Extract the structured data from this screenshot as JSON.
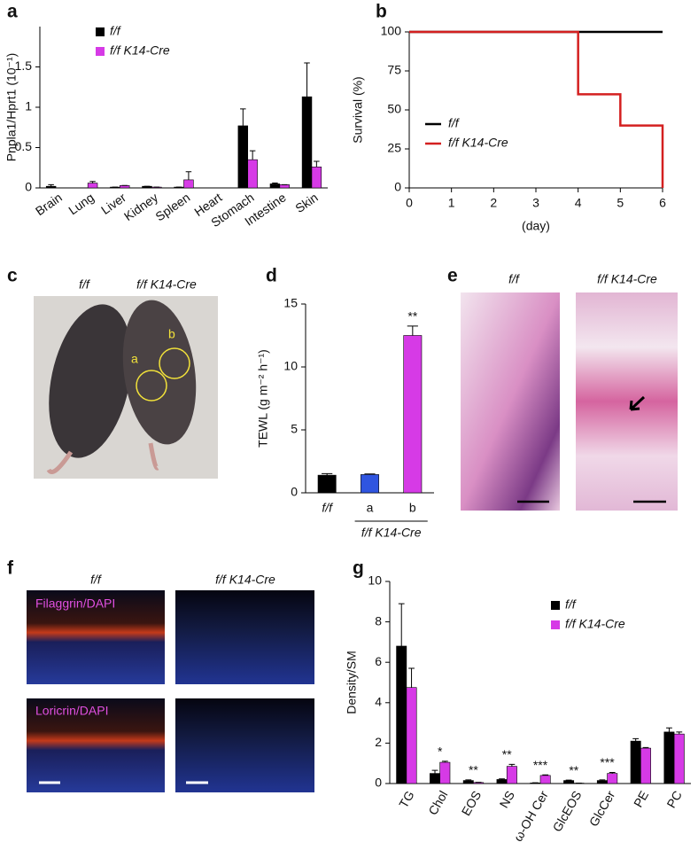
{
  "chart_data": [
    {
      "type": "bar",
      "panel": "a",
      "y_label": "Pnpla1/Hprt1 (10⁻¹)",
      "categories": [
        "Brain",
        "Lung",
        "Liver",
        "Kidney",
        "Spleen",
        "Heart",
        "Stomach",
        "Intestine",
        "Skin"
      ],
      "series": [
        {
          "name": "f/f",
          "color": "#000000",
          "values": [
            0.02,
            0.0,
            0.01,
            0.02,
            0.01,
            0.0,
            0.77,
            0.05,
            1.13
          ],
          "errors": [
            0.02,
            0.0,
            0.0,
            0.0,
            0.0,
            0.0,
            0.21,
            0.01,
            0.42
          ]
        },
        {
          "name": "f/f K14-Cre",
          "color": "#d63ae6",
          "values": [
            0.0,
            0.06,
            0.03,
            0.01,
            0.1,
            0.0,
            0.35,
            0.04,
            0.26
          ],
          "errors": [
            0.0,
            0.02,
            0.0,
            0.0,
            0.1,
            0.0,
            0.11,
            0.0,
            0.07
          ]
        }
      ],
      "ylim": [
        0,
        2
      ],
      "yticks": [
        0,
        0.5,
        1,
        1.5
      ]
    },
    {
      "type": "line",
      "panel": "b",
      "y_label": "Survival (%)",
      "x_label": "(day)",
      "series": [
        {
          "name": "f/f",
          "color": "#000000",
          "x": [
            0,
            6
          ],
          "values": [
            100,
            100
          ]
        },
        {
          "name": "f/f K14-Cre",
          "color": "#d42020",
          "x": [
            0,
            4,
            4,
            5,
            5,
            6,
            6
          ],
          "values": [
            100,
            100,
            60,
            60,
            40,
            40,
            0
          ]
        }
      ],
      "xlim": [
        0,
        6
      ],
      "xticks": [
        0,
        1,
        2,
        3,
        4,
        5,
        6
      ],
      "ylim": [
        0,
        100
      ],
      "yticks": [
        0,
        25,
        50,
        75,
        100
      ]
    },
    {
      "type": "bar",
      "panel": "d",
      "y_label": "TEWL (g m⁻² h⁻¹)",
      "categories": [
        "f/f",
        "a",
        "b"
      ],
      "values": [
        1.4,
        1.45,
        12.5
      ],
      "errors": [
        0.12,
        0.05,
        0.75
      ],
      "colors": [
        "#000000",
        "#2f55e0",
        "#d63ae6"
      ],
      "annotations": [
        null,
        null,
        "**"
      ],
      "group_label": "f/f K14-Cre",
      "ylim": [
        0,
        15
      ],
      "yticks": [
        0,
        5,
        10,
        15
      ]
    },
    {
      "type": "bar",
      "panel": "g",
      "y_label": "Density/SM",
      "categories": [
        "TG",
        "Chol",
        "EOS",
        "NS",
        "ω-OH Cer",
        "GlcEOS",
        "GlcCer",
        "PE",
        "PC"
      ],
      "series": [
        {
          "name": "f/f",
          "color": "#000000",
          "values": [
            6.8,
            0.5,
            0.15,
            0.2,
            0.03,
            0.15,
            0.15,
            2.1,
            2.55
          ],
          "errors": [
            2.1,
            0.15,
            0.03,
            0.03,
            0.01,
            0.02,
            0.03,
            0.12,
            0.2
          ]
        },
        {
          "name": "f/f K14-Cre",
          "color": "#d63ae6",
          "values": [
            4.75,
            1.05,
            0.05,
            0.85,
            0.4,
            0.02,
            0.5,
            1.75,
            2.45
          ],
          "errors": [
            0.95,
            0.05,
            0.01,
            0.1,
            0.03,
            0.0,
            0.05,
            0.03,
            0.1
          ]
        }
      ],
      "annotations": [
        null,
        "*",
        "**",
        "**",
        "***",
        "**",
        "***",
        null,
        null
      ],
      "ylim": [
        0,
        10
      ],
      "yticks": [
        0,
        2,
        4,
        6,
        8,
        10
      ]
    }
  ],
  "images": [
    {
      "panel": "c",
      "labels": [
        "f/f",
        "f/f K14-Cre"
      ],
      "markers": [
        "a",
        "b"
      ]
    },
    {
      "panel": "e",
      "labels": [
        "f/f",
        "f/f K14-Cre"
      ]
    },
    {
      "panel": "f",
      "labels": [
        "f/f",
        "f/f K14-Cre"
      ],
      "stains": [
        "Filaggrin/DAPI",
        "Loricrin/DAPI"
      ]
    }
  ]
}
